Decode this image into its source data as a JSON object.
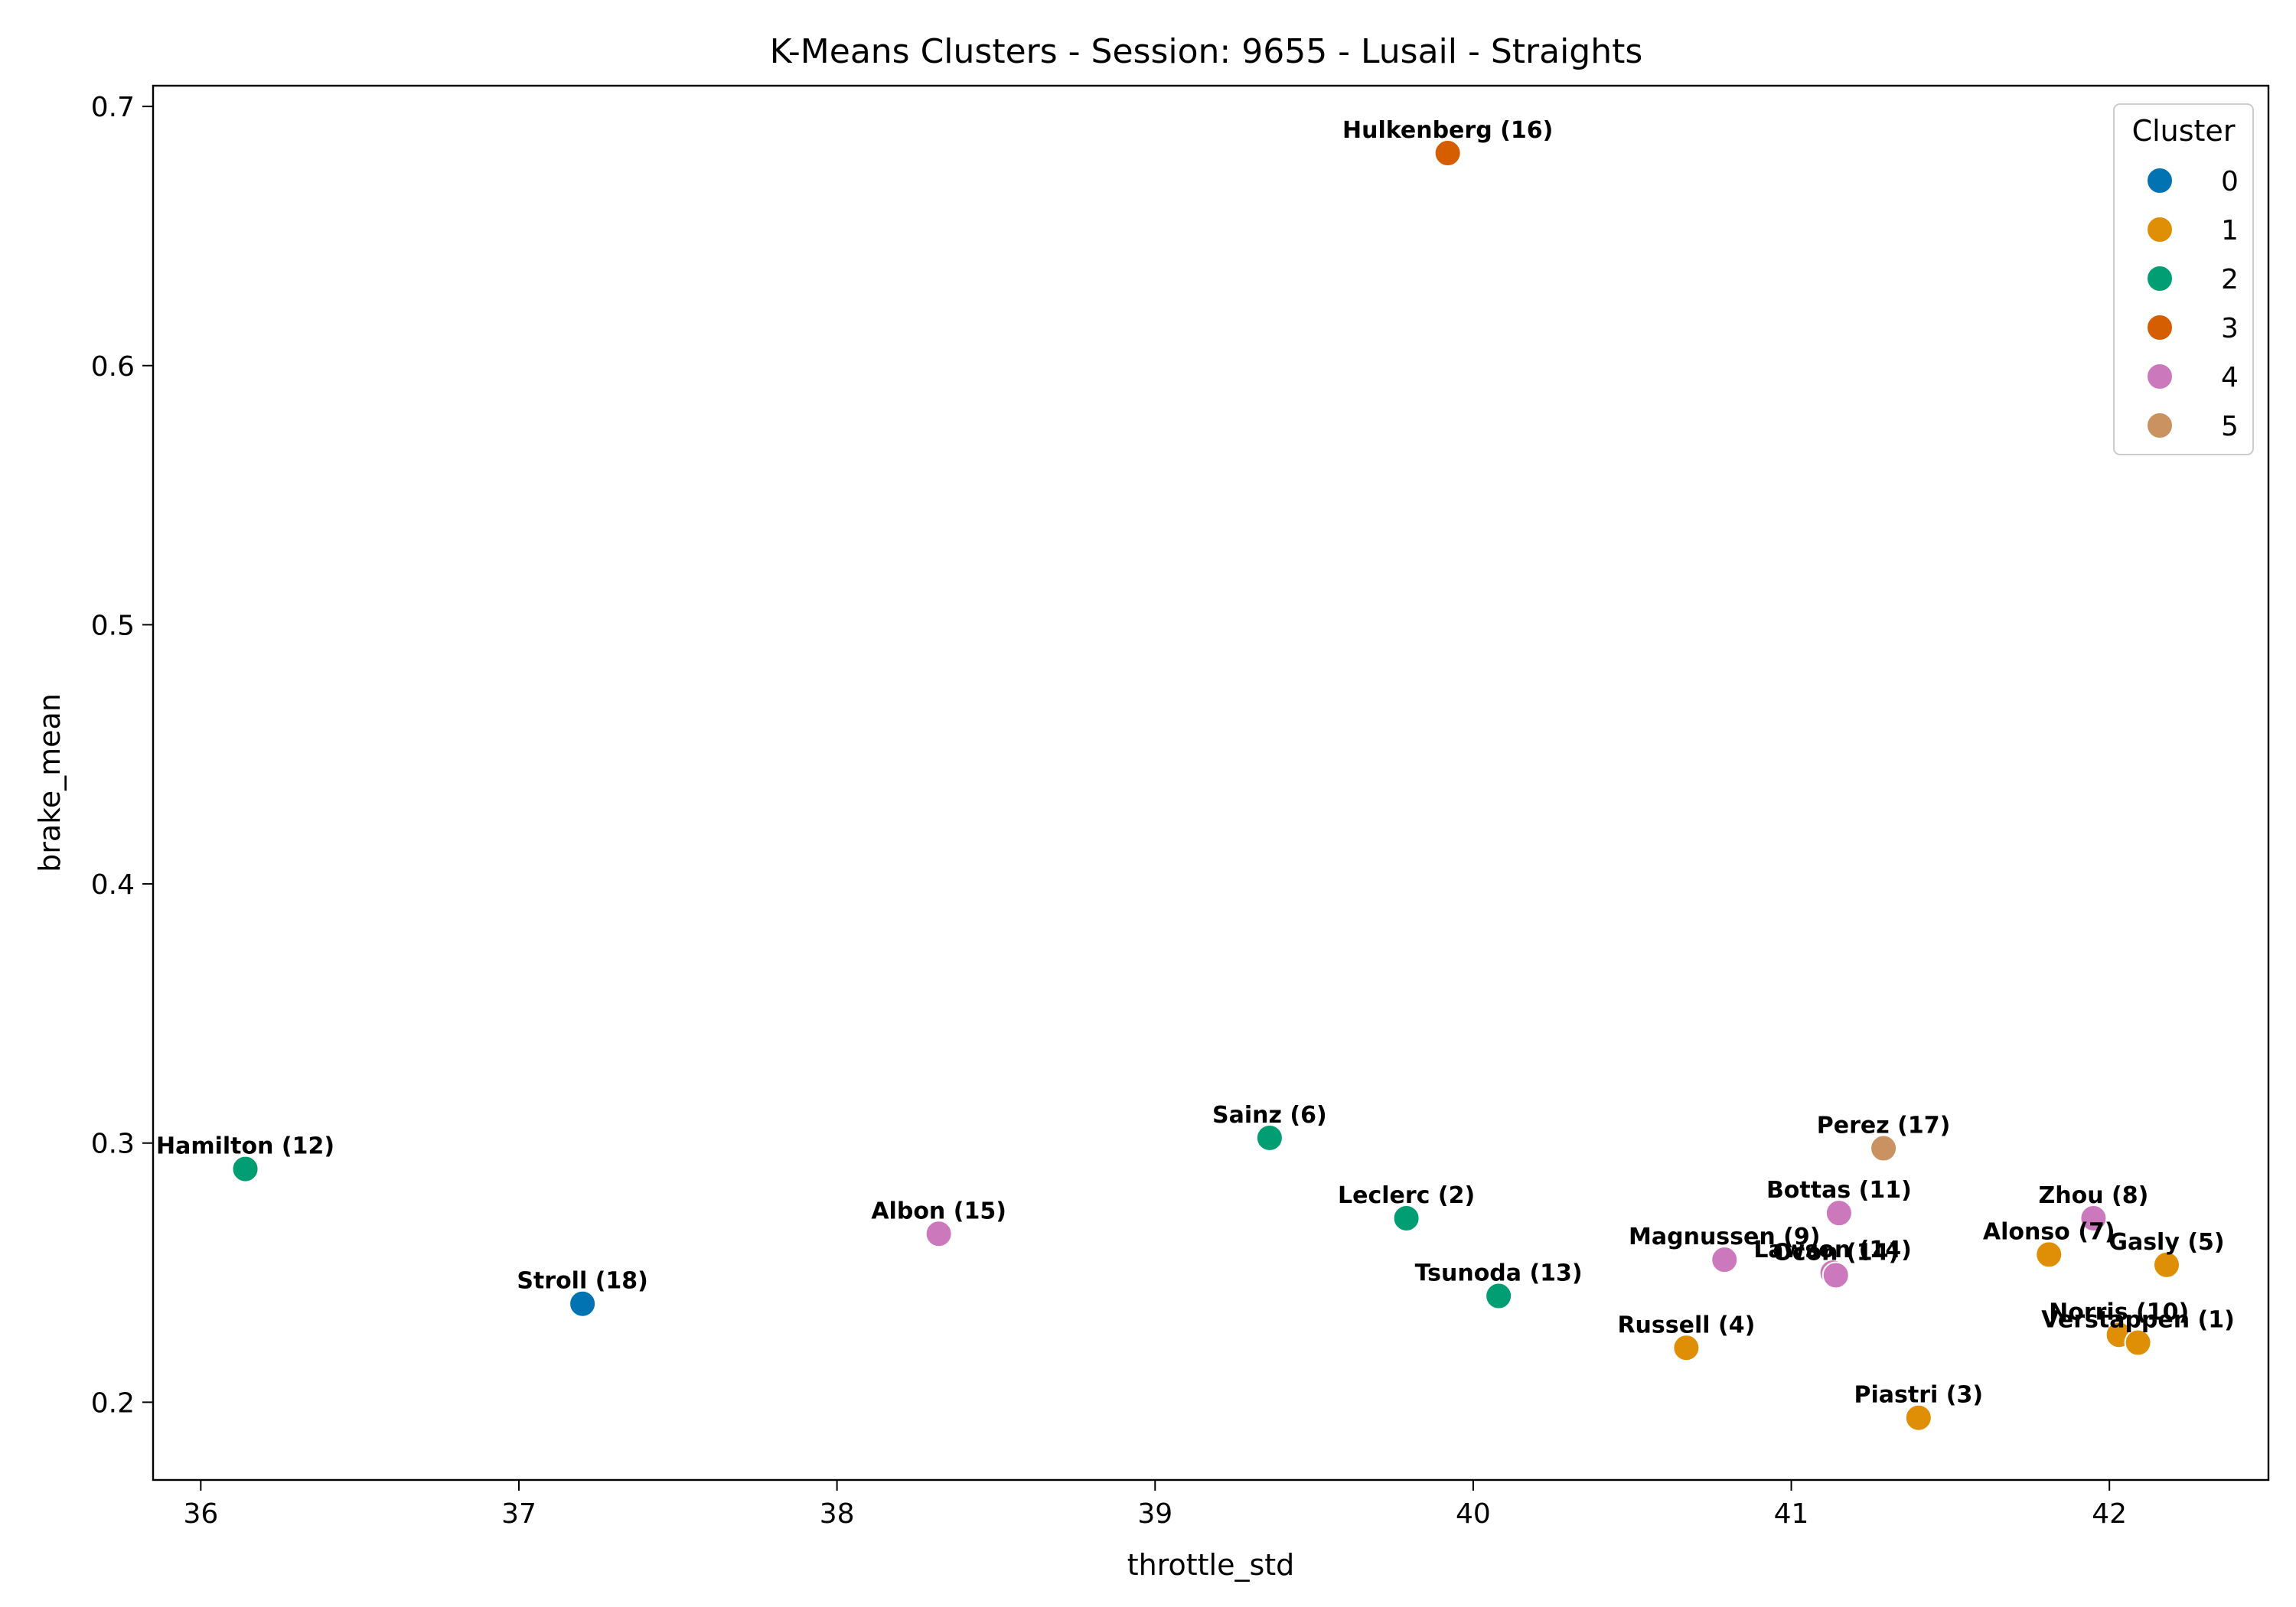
{
  "chart_data": {
    "type": "scatter",
    "title": "K-Means Clusters - Session: 9655 - Lusail - Straights",
    "xlabel": "throttle_std",
    "ylabel": "brake_mean",
    "xlim": [
      35.85,
      42.5
    ],
    "ylim": [
      0.17,
      0.708
    ],
    "xticks": [
      36,
      37,
      38,
      39,
      40,
      41,
      42
    ],
    "yticks": [
      0.2,
      0.3,
      0.4,
      0.5,
      0.6,
      0.7
    ],
    "grid": false,
    "legend": {
      "title": "Cluster",
      "placement": "top-right",
      "entries": [
        {
          "label": "0",
          "color": "#0173b2"
        },
        {
          "label": "1",
          "color": "#de8f05"
        },
        {
          "label": "2",
          "color": "#029e73"
        },
        {
          "label": "3",
          "color": "#d55e00"
        },
        {
          "label": "4",
          "color": "#cc78bc"
        },
        {
          "label": "5",
          "color": "#ca9161"
        }
      ]
    },
    "points": [
      {
        "label": "Hulkenberg (16)",
        "x": 39.92,
        "y": 0.682,
        "cluster": 3
      },
      {
        "label": "Hamilton (12)",
        "x": 36.14,
        "y": 0.29,
        "cluster": 2
      },
      {
        "label": "Stroll (18)",
        "x": 37.2,
        "y": 0.238,
        "cluster": 0
      },
      {
        "label": "Albon (15)",
        "x": 38.32,
        "y": 0.265,
        "cluster": 4
      },
      {
        "label": "Sainz (6)",
        "x": 39.36,
        "y": 0.302,
        "cluster": 2
      },
      {
        "label": "Leclerc (2)",
        "x": 39.79,
        "y": 0.271,
        "cluster": 2
      },
      {
        "label": "Tsunoda (13)",
        "x": 40.08,
        "y": 0.241,
        "cluster": 2
      },
      {
        "label": "Russell (4)",
        "x": 40.67,
        "y": 0.221,
        "cluster": 1
      },
      {
        "label": "Magnussen (9)",
        "x": 40.79,
        "y": 0.255,
        "cluster": 4
      },
      {
        "label": "Lawson (14)",
        "x": 41.13,
        "y": 0.25,
        "cluster": 4
      },
      {
        "label": "Ocon (14)",
        "x": 41.14,
        "y": 0.249,
        "cluster": 4
      },
      {
        "label": "Bottas (11)",
        "x": 41.15,
        "y": 0.273,
        "cluster": 4
      },
      {
        "label": "Perez (17)",
        "x": 41.29,
        "y": 0.298,
        "cluster": 5
      },
      {
        "label": "Piastri (3)",
        "x": 41.4,
        "y": 0.194,
        "cluster": 1
      },
      {
        "label": "Alonso (7)",
        "x": 41.81,
        "y": 0.257,
        "cluster": 1
      },
      {
        "label": "Zhou (8)",
        "x": 41.95,
        "y": 0.271,
        "cluster": 4
      },
      {
        "label": "Norris (10)",
        "x": 42.03,
        "y": 0.226,
        "cluster": 1
      },
      {
        "label": "Verstappen (1)",
        "x": 42.09,
        "y": 0.223,
        "cluster": 1
      },
      {
        "label": "Gasly (5)",
        "x": 42.18,
        "y": 0.253,
        "cluster": 1
      }
    ]
  }
}
